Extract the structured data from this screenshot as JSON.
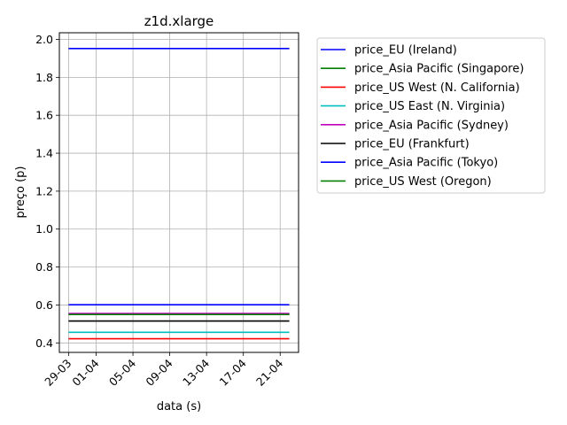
{
  "chart_data": {
    "type": "line",
    "title": "z1d.xlarge",
    "xlabel": "data (s)",
    "ylabel": "preço (p)",
    "x_range": [
      "2019-03-28",
      "2019-04-23"
    ],
    "ylim": [
      0.35,
      2.035
    ],
    "grid": true,
    "legend_placement": "outside-upper-right",
    "x_ticks": [
      {
        "date": "2019-03-29",
        "label": "29-03"
      },
      {
        "date": "2019-04-01",
        "label": "01-04"
      },
      {
        "date": "2019-04-05",
        "label": "05-04"
      },
      {
        "date": "2019-04-09",
        "label": "09-04"
      },
      {
        "date": "2019-04-13",
        "label": "13-04"
      },
      {
        "date": "2019-04-17",
        "label": "17-04"
      },
      {
        "date": "2019-04-21",
        "label": "21-04"
      }
    ],
    "y_ticks": [
      {
        "value": 0.4,
        "label": "0.4"
      },
      {
        "value": 0.6,
        "label": "0.6"
      },
      {
        "value": 0.8,
        "label": "0.8"
      },
      {
        "value": 1.0,
        "label": "1.0"
      },
      {
        "value": 1.2,
        "label": "1.2"
      },
      {
        "value": 1.4,
        "label": "1.4"
      },
      {
        "value": 1.6,
        "label": "1.6"
      },
      {
        "value": 1.8,
        "label": "1.8"
      },
      {
        "value": 2.0,
        "label": "2.0"
      }
    ],
    "series": [
      {
        "name": "price_EU (Ireland)",
        "color": "#0000ff",
        "x": [
          "2019-03-29",
          "2019-04-22"
        ],
        "y": [
          1.952,
          1.952
        ]
      },
      {
        "name": "price_Asia Pacific (Singapore)",
        "color": "#008000",
        "x": [
          "2019-03-29",
          "2019-04-22"
        ],
        "y": [
          0.55,
          0.55
        ]
      },
      {
        "name": "price_US West (N. California)",
        "color": "#ff0000",
        "x": [
          "2019-03-29",
          "2019-04-22"
        ],
        "y": [
          0.422,
          0.422
        ]
      },
      {
        "name": "price_US East (N. Virginia)",
        "color": "#00bfbf",
        "x": [
          "2019-03-29",
          "2019-04-22"
        ],
        "y": [
          0.456,
          0.456
        ]
      },
      {
        "name": "price_Asia Pacific (Sydney)",
        "color": "#bf00bf",
        "x": [
          "2019-03-29",
          "2019-04-22"
        ],
        "y": [
          0.555,
          0.555
        ]
      },
      {
        "name": "price_EU (Frankfurt)",
        "color": "#000000",
        "x": [
          "2019-03-29",
          "2019-04-22"
        ],
        "y": [
          0.515,
          0.515
        ]
      },
      {
        "name": "price_Asia Pacific (Tokyo)",
        "color": "#0000ff",
        "x": [
          "2019-03-29",
          "2019-04-22"
        ],
        "y": [
          0.601,
          0.601
        ]
      },
      {
        "name": "price_US West (Oregon)",
        "color": "#008000",
        "x": [
          "2019-03-29",
          "2019-04-22"
        ],
        "y": [
          0.55,
          0.55
        ]
      }
    ]
  }
}
